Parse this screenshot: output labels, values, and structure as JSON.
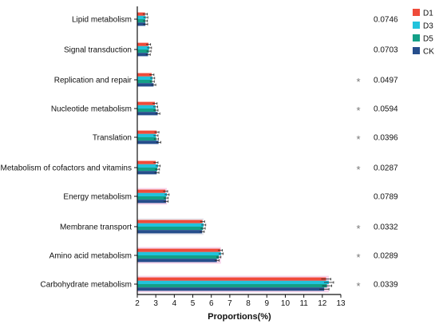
{
  "chart_data": {
    "type": "bar",
    "orientation": "horizontal",
    "categories": [
      "Lipid metabolism",
      "Signal transduction",
      "Replication and repair",
      "Nucleotide metabolism",
      "Translation",
      "Metabolism of cofactors and vitamins",
      "Energy metabolism",
      "Membrane transport",
      "Amino acid metabolism",
      "Carbohydrate metabolism"
    ],
    "series": [
      {
        "name": "D1",
        "color": "#ef4b3a",
        "values": [
          2.42,
          2.6,
          2.78,
          2.95,
          3.05,
          3.0,
          3.52,
          5.52,
          6.48,
          12.2
        ]
      },
      {
        "name": "D3",
        "color": "#22c3dc",
        "values": [
          2.45,
          2.65,
          2.82,
          2.98,
          3.0,
          3.12,
          3.6,
          5.58,
          6.52,
          12.35
        ]
      },
      {
        "name": "D5",
        "color": "#14a087",
        "values": [
          2.43,
          2.62,
          2.8,
          3.0,
          3.02,
          3.08,
          3.55,
          5.55,
          6.4,
          12.25
        ]
      },
      {
        "name": "CK",
        "color": "#264e8c",
        "values": [
          2.44,
          2.58,
          2.88,
          3.1,
          3.15,
          3.05,
          3.55,
          5.5,
          6.3,
          12.1
        ]
      }
    ],
    "p_values": [
      "0.0746",
      "0.0703",
      "0.0497",
      "0.0594",
      "0.0396",
      "0.0287",
      "0.0789",
      "0.0332",
      "0.0289",
      "0.0339"
    ],
    "significant": [
      false,
      false,
      true,
      true,
      true,
      true,
      false,
      true,
      true,
      true
    ],
    "significance_symbol": "*",
    "xlabel": "Proportions(%)",
    "ylabel": "",
    "xlim": [
      2,
      13
    ],
    "xticks": [
      "2",
      "3",
      "4",
      "5",
      "6",
      "7",
      "8",
      "9",
      "10",
      "11",
      "12",
      "13"
    ],
    "grid": false,
    "legend_position": "top-right"
  }
}
